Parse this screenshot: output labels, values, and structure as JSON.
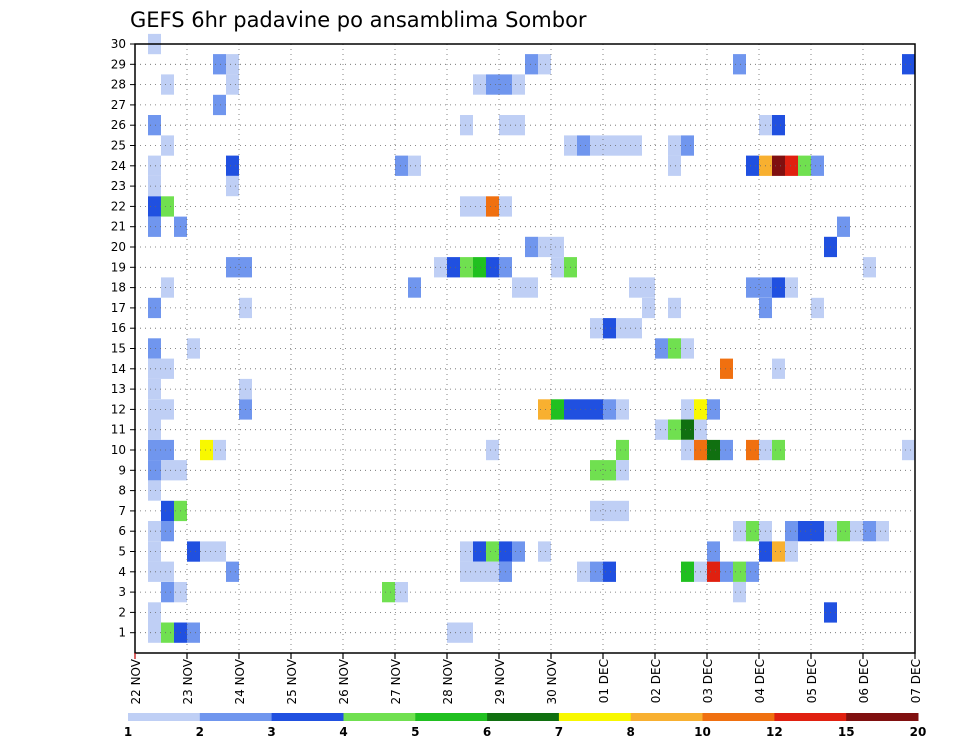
{
  "chart_data": {
    "type": "heatmap",
    "title": "GEFS 6hr padavine po ansamblima Sombor",
    "x_tick_labels": [
      "22 NOV",
      "23 NOV",
      "24 NOV",
      "25 NOV",
      "26 NOV",
      "27 NOV",
      "28 NOV",
      "29 NOV",
      "30 NOV",
      "01 DEC",
      "02 DEC",
      "03 DEC",
      "04 DEC",
      "05 DEC",
      "06 DEC",
      "07 DEC"
    ],
    "y_tick_labels": [
      "1",
      "2",
      "3",
      "4",
      "5",
      "6",
      "7",
      "8",
      "9",
      "10",
      "11",
      "12",
      "13",
      "14",
      "15",
      "16",
      "17",
      "18",
      "19",
      "20",
      "21",
      "22",
      "23",
      "24",
      "25",
      "26",
      "27",
      "28",
      "29",
      "30"
    ],
    "x_time_steps": 60,
    "y_members": 30,
    "grid": "dotted",
    "colorbar": {
      "labels": [
        "1",
        "2",
        "3",
        "4",
        "5",
        "6",
        "7",
        "8",
        "10",
        "12",
        "15",
        "20"
      ],
      "colors": [
        "#bfcff5",
        "#7096ee",
        "#2050e0",
        "#70e050",
        "#20c020",
        "#107010",
        "#f8f800",
        "#f8b030",
        "#f07010",
        "#e02010",
        "#801010"
      ]
    },
    "cells": [
      [
        1,
        0,
        1
      ],
      [
        2,
        0,
        2
      ],
      [
        2,
        2,
        4
      ],
      [
        3,
        0,
        1
      ],
      [
        3,
        1,
        3
      ],
      [
        3,
        2,
        4
      ],
      [
        4,
        0,
        1
      ],
      [
        4,
        1,
        1
      ],
      [
        4,
        3,
        2
      ],
      [
        4,
        4,
        1
      ],
      [
        5,
        0,
        1
      ],
      [
        5,
        1,
        2
      ],
      [
        5,
        3,
        3
      ],
      [
        5,
        4,
        1
      ],
      [
        5,
        5,
        1
      ],
      [
        5,
        6,
        2
      ],
      [
        6,
        0,
        1
      ],
      [
        6,
        2,
        1
      ],
      [
        8,
        1,
        1
      ],
      [
        9,
        1,
        1
      ],
      [
        11,
        1,
        2
      ],
      [
        13,
        0,
        3
      ],
      [
        16,
        0,
        1
      ],
      [
        17,
        0,
        1
      ],
      [
        19,
        1,
        2
      ],
      [
        19,
        2,
        1
      ],
      [
        19,
        3,
        1
      ],
      [
        20,
        0,
        1
      ],
      [
        11,
        2,
        1
      ],
      [
        11,
        3,
        1
      ],
      [
        12,
        2,
        1
      ],
      [
        12,
        3,
        1
      ],
      [
        12,
        4,
        2
      ],
      [
        12,
        5,
        3
      ],
      [
        13,
        2,
        1
      ],
      [
        13,
        4,
        3
      ],
      [
        13,
        5,
        2
      ],
      [
        13,
        7,
        1
      ],
      [
        14,
        2,
        4
      ],
      [
        15,
        0,
        1
      ],
      [
        14,
        0,
        3
      ],
      [
        15,
        3,
        1
      ],
      [
        16,
        0,
        2
      ],
      [
        17,
        1,
        1
      ],
      [
        17,
        2,
        1
      ],
      [
        18,
        0,
        1
      ],
      [
        18,
        1,
        1
      ],
      [
        19,
        5,
        4
      ],
      [
        20,
        0,
        2
      ],
      [
        21,
        0,
        1
      ],
      [
        21,
        1,
        1
      ],
      [
        22,
        0,
        5
      ],
      [
        25,
        0,
        1
      ],
      [
        25,
        1,
        1
      ],
      [
        26,
        1,
        2
      ],
      [
        27,
        3,
        3
      ],
      [
        27,
        4,
        1
      ],
      [
        28,
        2,
        1
      ],
      [
        28,
        3,
        2
      ],
      [
        29,
        2,
        1
      ],
      [
        29,
        3,
        3
      ],
      [
        30,
        0,
        3
      ],
      [
        30,
        1,
        2
      ],
      [
        31,
        0,
        2
      ],
      [
        31,
        1,
        1
      ],
      [
        31,
        3,
        1
      ],
      [
        32,
        0,
        1
      ],
      [
        32,
        1,
        1
      ],
      [
        32,
        3,
        2
      ],
      [
        34,
        0,
        1
      ],
      [
        36,
        0,
        1
      ],
      [
        36,
        2,
        1
      ],
      [
        37,
        1,
        1
      ],
      [
        37,
        2,
        1
      ],
      [
        38,
        2,
        1
      ],
      [
        38,
        4,
        2
      ],
      [
        39,
        2,
        1
      ],
      [
        40,
        1,
        1
      ],
      [
        40,
        3,
        2
      ],
      [
        41,
        1,
        1
      ],
      [
        41,
        2,
        1
      ],
      [
        42,
        1,
        1
      ],
      [
        42,
        3,
        2
      ],
      [
        43,
        0,
        1
      ],
      [
        44,
        0,
        1
      ],
      [
        45,
        1,
        1
      ],
      [
        45,
        2,
        1
      ]
    ],
    "members_detail": {
      "9": [
        [
          0,
          2
        ],
        [
          1,
          2
        ],
        [
          4,
          6
        ],
        [
          5,
          1
        ],
        [
          7,
          1
        ],
        [
          19,
          4
        ],
        [
          32,
          9
        ],
        [
          33,
          9
        ],
        [
          34,
          2
        ],
        [
          36,
          9
        ],
        [
          37,
          1
        ],
        [
          38,
          4
        ],
        [
          59,
          1
        ],
        [
          22,
          1
        ]
      ],
      "3": [
        [
          0,
          1
        ],
        [
          1,
          1
        ],
        [
          5,
          2
        ],
        [
          14,
          1
        ],
        [
          15,
          1
        ],
        [
          16,
          2
        ],
        [
          18,
          1
        ],
        [
          19,
          2
        ],
        [
          20,
          3
        ],
        [
          21,
          1
        ],
        [
          22,
          5
        ],
        [
          23,
          1
        ],
        [
          24,
          10
        ],
        [
          25,
          2
        ],
        [
          26,
          1
        ],
        [
          27,
          5
        ],
        [
          28,
          2
        ],
        [
          29,
          2
        ],
        [
          30,
          2
        ]
      ]
    }
  },
  "grid_cells": [
    {
      "x": 1,
      "y": 30,
      "v": 1
    },
    {
      "x": 6,
      "y": 29,
      "v": 2
    },
    {
      "x": 7,
      "y": 29,
      "v": 1
    },
    {
      "x": 30,
      "y": 29,
      "v": 2
    },
    {
      "x": 31,
      "y": 29,
      "v": 1
    },
    {
      "x": 46,
      "y": 29,
      "v": 2
    },
    {
      "x": 59,
      "y": 29,
      "v": 3
    },
    {
      "x": 2,
      "y": 28,
      "v": 1
    },
    {
      "x": 7,
      "y": 28,
      "v": 1
    },
    {
      "x": 26,
      "y": 28,
      "v": 1
    },
    {
      "x": 27,
      "y": 28,
      "v": 2
    },
    {
      "x": 28,
      "y": 28,
      "v": 2
    },
    {
      "x": 29,
      "y": 28,
      "v": 1
    },
    {
      "x": 6,
      "y": 27,
      "v": 2
    },
    {
      "x": 1,
      "y": 26,
      "v": 2
    },
    {
      "x": 25,
      "y": 26,
      "v": 1
    },
    {
      "x": 28,
      "y": 26,
      "v": 1
    },
    {
      "x": 29,
      "y": 26,
      "v": 1
    },
    {
      "x": 48,
      "y": 26,
      "v": 1
    },
    {
      "x": 49,
      "y": 26,
      "v": 3
    },
    {
      "x": 2,
      "y": 25,
      "v": 1
    },
    {
      "x": 33,
      "y": 25,
      "v": 1
    },
    {
      "x": 34,
      "y": 25,
      "v": 2
    },
    {
      "x": 35,
      "y": 25,
      "v": 1
    },
    {
      "x": 36,
      "y": 25,
      "v": 1
    },
    {
      "x": 37,
      "y": 25,
      "v": 1
    },
    {
      "x": 38,
      "y": 25,
      "v": 1
    },
    {
      "x": 41,
      "y": 25,
      "v": 1
    },
    {
      "x": 42,
      "y": 25,
      "v": 2
    },
    {
      "x": 1,
      "y": 24,
      "v": 1
    },
    {
      "x": 7,
      "y": 24,
      "v": 3
    },
    {
      "x": 20,
      "y": 24,
      "v": 2
    },
    {
      "x": 21,
      "y": 24,
      "v": 1
    },
    {
      "x": 41,
      "y": 24,
      "v": 1
    },
    {
      "x": 47,
      "y": 24,
      "v": 3
    },
    {
      "x": 48,
      "y": 24,
      "v": 8
    },
    {
      "x": 49,
      "y": 24,
      "v": 11
    },
    {
      "x": 50,
      "y": 24,
      "v": 10
    },
    {
      "x": 51,
      "y": 24,
      "v": 4
    },
    {
      "x": 52,
      "y": 24,
      "v": 2
    },
    {
      "x": 1,
      "y": 23,
      "v": 1
    },
    {
      "x": 7,
      "y": 23,
      "v": 1
    },
    {
      "x": 1,
      "y": 22,
      "v": 3
    },
    {
      "x": 2,
      "y": 22,
      "v": 4
    },
    {
      "x": 25,
      "y": 22,
      "v": 1
    },
    {
      "x": 26,
      "y": 22,
      "v": 1
    },
    {
      "x": 27,
      "y": 22,
      "v": 9
    },
    {
      "x": 28,
      "y": 22,
      "v": 1
    },
    {
      "x": 1,
      "y": 21,
      "v": 2
    },
    {
      "x": 3,
      "y": 21,
      "v": 2
    },
    {
      "x": 54,
      "y": 21,
      "v": 2
    },
    {
      "x": 30,
      "y": 20,
      "v": 2
    },
    {
      "x": 31,
      "y": 20,
      "v": 1
    },
    {
      "x": 32,
      "y": 20,
      "v": 1
    },
    {
      "x": 53,
      "y": 20,
      "v": 3
    },
    {
      "x": 7,
      "y": 19,
      "v": 2
    },
    {
      "x": 8,
      "y": 19,
      "v": 2
    },
    {
      "x": 23,
      "y": 19,
      "v": 1
    },
    {
      "x": 24,
      "y": 19,
      "v": 3
    },
    {
      "x": 25,
      "y": 19,
      "v": 4
    },
    {
      "x": 26,
      "y": 19,
      "v": 5
    },
    {
      "x": 27,
      "y": 19,
      "v": 3
    },
    {
      "x": 28,
      "y": 19,
      "v": 2
    },
    {
      "x": 32,
      "y": 19,
      "v": 1
    },
    {
      "x": 33,
      "y": 19,
      "v": 4
    },
    {
      "x": 56,
      "y": 19,
      "v": 1
    },
    {
      "x": 2,
      "y": 18,
      "v": 1
    },
    {
      "x": 21,
      "y": 18,
      "v": 2
    },
    {
      "x": 29,
      "y": 18,
      "v": 1
    },
    {
      "x": 30,
      "y": 18,
      "v": 1
    },
    {
      "x": 38,
      "y": 18,
      "v": 1
    },
    {
      "x": 39,
      "y": 18,
      "v": 1
    },
    {
      "x": 47,
      "y": 18,
      "v": 2
    },
    {
      "x": 48,
      "y": 18,
      "v": 2
    },
    {
      "x": 49,
      "y": 18,
      "v": 3
    },
    {
      "x": 50,
      "y": 18,
      "v": 1
    },
    {
      "x": 1,
      "y": 17,
      "v": 2
    },
    {
      "x": 8,
      "y": 17,
      "v": 1
    },
    {
      "x": 39,
      "y": 17,
      "v": 1
    },
    {
      "x": 41,
      "y": 17,
      "v": 1
    },
    {
      "x": 48,
      "y": 17,
      "v": 2
    },
    {
      "x": 52,
      "y": 17,
      "v": 1
    },
    {
      "x": 35,
      "y": 16,
      "v": 1
    },
    {
      "x": 36,
      "y": 16,
      "v": 3
    },
    {
      "x": 37,
      "y": 16,
      "v": 1
    },
    {
      "x": 38,
      "y": 16,
      "v": 1
    },
    {
      "x": 1,
      "y": 15,
      "v": 2
    },
    {
      "x": 4,
      "y": 15,
      "v": 1
    },
    {
      "x": 40,
      "y": 15,
      "v": 2
    },
    {
      "x": 41,
      "y": 15,
      "v": 4
    },
    {
      "x": 42,
      "y": 15,
      "v": 1
    },
    {
      "x": 1,
      "y": 14,
      "v": 1
    },
    {
      "x": 2,
      "y": 14,
      "v": 1
    },
    {
      "x": 45,
      "y": 14,
      "v": 9
    },
    {
      "x": 49,
      "y": 14,
      "v": 1
    },
    {
      "x": 1,
      "y": 13,
      "v": 1
    },
    {
      "x": 8,
      "y": 13,
      "v": 1
    },
    {
      "x": 1,
      "y": 12,
      "v": 1
    },
    {
      "x": 2,
      "y": 12,
      "v": 1
    },
    {
      "x": 8,
      "y": 12,
      "v": 2
    },
    {
      "x": 31,
      "y": 12,
      "v": 8
    },
    {
      "x": 32,
      "y": 12,
      "v": 5
    },
    {
      "x": 33,
      "y": 12,
      "v": 3
    },
    {
      "x": 34,
      "y": 12,
      "v": 3
    },
    {
      "x": 35,
      "y": 12,
      "v": 3
    },
    {
      "x": 36,
      "y": 12,
      "v": 2
    },
    {
      "x": 37,
      "y": 12,
      "v": 1
    },
    {
      "x": 42,
      "y": 12,
      "v": 1
    },
    {
      "x": 43,
      "y": 12,
      "v": 7
    },
    {
      "x": 44,
      "y": 12,
      "v": 2
    },
    {
      "x": 1,
      "y": 11,
      "v": 1
    },
    {
      "x": 40,
      "y": 11,
      "v": 1
    },
    {
      "x": 41,
      "y": 11,
      "v": 4
    },
    {
      "x": 42,
      "y": 11,
      "v": 6
    },
    {
      "x": 43,
      "y": 11,
      "v": 1
    },
    {
      "x": 1,
      "y": 10,
      "v": 2
    },
    {
      "x": 2,
      "y": 10,
      "v": 2
    },
    {
      "x": 5,
      "y": 10,
      "v": 7
    },
    {
      "x": 6,
      "y": 10,
      "v": 1
    },
    {
      "x": 27,
      "y": 10,
      "v": 1
    },
    {
      "x": 37,
      "y": 10,
      "v": 4
    },
    {
      "x": 42,
      "y": 10,
      "v": 1
    },
    {
      "x": 43,
      "y": 10,
      "v": 9
    },
    {
      "x": 44,
      "y": 10,
      "v": 6
    },
    {
      "x": 45,
      "y": 10,
      "v": 2
    },
    {
      "x": 47,
      "y": 10,
      "v": 9
    },
    {
      "x": 48,
      "y": 10,
      "v": 1
    },
    {
      "x": 49,
      "y": 10,
      "v": 4
    },
    {
      "x": 59,
      "y": 10,
      "v": 1
    },
    {
      "x": 1,
      "y": 9,
      "v": 2
    },
    {
      "x": 2,
      "y": 9,
      "v": 1
    },
    {
      "x": 3,
      "y": 9,
      "v": 1
    },
    {
      "x": 35,
      "y": 9,
      "v": 4
    },
    {
      "x": 36,
      "y": 9,
      "v": 4
    },
    {
      "x": 37,
      "y": 9,
      "v": 1
    },
    {
      "x": 1,
      "y": 8,
      "v": 1
    },
    {
      "x": 2,
      "y": 7,
      "v": 3
    },
    {
      "x": 3,
      "y": 7,
      "v": 4
    },
    {
      "x": 35,
      "y": 7,
      "v": 1
    },
    {
      "x": 36,
      "y": 7,
      "v": 1
    },
    {
      "x": 37,
      "y": 7,
      "v": 1
    },
    {
      "x": 1,
      "y": 6,
      "v": 1
    },
    {
      "x": 2,
      "y": 6,
      "v": 2
    },
    {
      "x": 46,
      "y": 6,
      "v": 1
    },
    {
      "x": 47,
      "y": 6,
      "v": 4
    },
    {
      "x": 48,
      "y": 6,
      "v": 1
    },
    {
      "x": 50,
      "y": 6,
      "v": 2
    },
    {
      "x": 51,
      "y": 6,
      "v": 3
    },
    {
      "x": 52,
      "y": 6,
      "v": 3
    },
    {
      "x": 53,
      "y": 6,
      "v": 1
    },
    {
      "x": 54,
      "y": 6,
      "v": 4
    },
    {
      "x": 55,
      "y": 6,
      "v": 1
    },
    {
      "x": 56,
      "y": 6,
      "v": 2
    },
    {
      "x": 57,
      "y": 6,
      "v": 1
    },
    {
      "x": 1,
      "y": 5,
      "v": 1
    },
    {
      "x": 4,
      "y": 5,
      "v": 3
    },
    {
      "x": 5,
      "y": 5,
      "v": 1
    },
    {
      "x": 6,
      "y": 5,
      "v": 1
    },
    {
      "x": 25,
      "y": 5,
      "v": 1
    },
    {
      "x": 26,
      "y": 5,
      "v": 3
    },
    {
      "x": 27,
      "y": 5,
      "v": 4
    },
    {
      "x": 28,
      "y": 5,
      "v": 3
    },
    {
      "x": 29,
      "y": 5,
      "v": 2
    },
    {
      "x": 31,
      "y": 5,
      "v": 1
    },
    {
      "x": 44,
      "y": 5,
      "v": 2
    },
    {
      "x": 48,
      "y": 5,
      "v": 3
    },
    {
      "x": 49,
      "y": 5,
      "v": 8
    },
    {
      "x": 50,
      "y": 5,
      "v": 1
    },
    {
      "x": 1,
      "y": 4,
      "v": 1
    },
    {
      "x": 2,
      "y": 4,
      "v": 1
    },
    {
      "x": 7,
      "y": 4,
      "v": 2
    },
    {
      "x": 25,
      "y": 4,
      "v": 1
    },
    {
      "x": 26,
      "y": 4,
      "v": 1
    },
    {
      "x": 27,
      "y": 4,
      "v": 1
    },
    {
      "x": 28,
      "y": 4,
      "v": 2
    },
    {
      "x": 34,
      "y": 4,
      "v": 1
    },
    {
      "x": 35,
      "y": 4,
      "v": 2
    },
    {
      "x": 36,
      "y": 4,
      "v": 3
    },
    {
      "x": 42,
      "y": 4,
      "v": 5
    },
    {
      "x": 43,
      "y": 4,
      "v": 1
    },
    {
      "x": 44,
      "y": 4,
      "v": 10
    },
    {
      "x": 45,
      "y": 4,
      "v": 2
    },
    {
      "x": 46,
      "y": 4,
      "v": 4
    },
    {
      "x": 47,
      "y": 4,
      "v": 2
    },
    {
      "x": 2,
      "y": 3,
      "v": 2
    },
    {
      "x": 3,
      "y": 3,
      "v": 1
    },
    {
      "x": 19,
      "y": 3,
      "v": 4
    },
    {
      "x": 20,
      "y": 3,
      "v": 1
    },
    {
      "x": 46,
      "y": 3,
      "v": 1
    },
    {
      "x": 1,
      "y": 2,
      "v": 1
    },
    {
      "x": 53,
      "y": 2,
      "v": 3
    },
    {
      "x": 1,
      "y": 1,
      "v": 1
    },
    {
      "x": 2,
      "y": 1,
      "v": 4
    },
    {
      "x": 3,
      "y": 1,
      "v": 3
    },
    {
      "x": 4,
      "y": 1,
      "v": 2
    },
    {
      "x": 24,
      "y": 1,
      "v": 1
    },
    {
      "x": 25,
      "y": 1,
      "v": 1
    }
  ]
}
